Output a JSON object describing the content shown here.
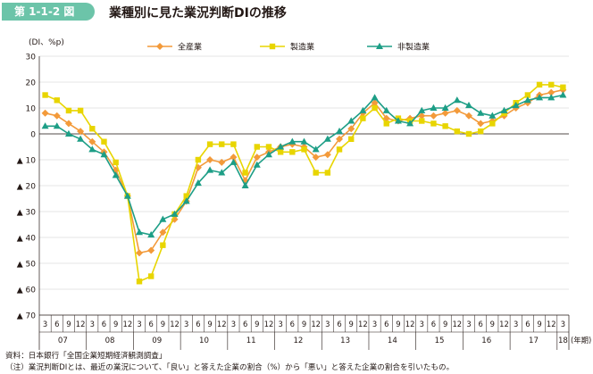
{
  "figure": {
    "tag": "第 1-1-2 図",
    "title": "業種別に見た業況判断DIの推移"
  },
  "chart_data": {
    "type": "line",
    "ylabel": "(DI、%p)",
    "ylim": [
      -70,
      30
    ],
    "grid": true,
    "legend_position": "top",
    "yticks": [
      {
        "value": 30,
        "label": "30"
      },
      {
        "value": 20,
        "label": "20"
      },
      {
        "value": 10,
        "label": "10"
      },
      {
        "value": 0,
        "label": "0"
      },
      {
        "value": -10,
        "label": "▲ 10"
      },
      {
        "value": -20,
        "label": "▲ 20"
      },
      {
        "value": -30,
        "label": "▲ 30"
      },
      {
        "value": -40,
        "label": "▲ 40"
      },
      {
        "value": -50,
        "label": "▲ 50"
      },
      {
        "value": -60,
        "label": "▲ 60"
      },
      {
        "value": -70,
        "label": "▲ 70"
      }
    ],
    "month_labels": [
      "3",
      "6",
      "9",
      "12",
      "3",
      "6",
      "9",
      "12",
      "3",
      "6",
      "9",
      "12",
      "3",
      "6",
      "9",
      "12",
      "3",
      "6",
      "9",
      "12",
      "3",
      "6",
      "9",
      "12",
      "3",
      "6",
      "9",
      "12",
      "3",
      "6",
      "9",
      "12",
      "3",
      "6",
      "9",
      "12",
      "3",
      "6",
      "9",
      "12",
      "3",
      "6",
      "9",
      "12",
      "3"
    ],
    "year_labels": [
      "07",
      "08",
      "09",
      "10",
      "11",
      "12",
      "13",
      "14",
      "15",
      "16",
      "17",
      "18"
    ],
    "year_suffix": "(年期)",
    "series": [
      {
        "name": "全産業",
        "color": "#f39a3a",
        "marker": "diamond",
        "values": [
          8,
          7,
          4,
          1,
          -3,
          -7,
          -14,
          -24,
          -46,
          -45,
          -38,
          -33,
          -26,
          -13,
          -10,
          -11,
          -9,
          -18,
          -9,
          -7,
          -5,
          -4,
          -5,
          -9,
          -8,
          -2,
          2,
          8,
          12,
          6,
          5,
          6,
          7,
          7,
          8,
          9,
          7,
          4,
          5,
          7,
          10,
          12,
          15,
          16,
          17
        ]
      },
      {
        "name": "製造業",
        "color": "#e8d500",
        "marker": "square",
        "values": [
          15,
          13,
          9,
          9,
          2,
          -3,
          -11,
          -24,
          -57,
          -55,
          -43,
          -31,
          -24,
          -10,
          -4,
          -4,
          -4,
          -15,
          -5,
          -5,
          -7,
          -7,
          -6,
          -15,
          -15,
          -6,
          -2,
          6,
          10,
          4,
          6,
          5,
          5,
          4,
          3,
          1,
          0,
          1,
          4,
          8,
          12,
          15,
          19,
          19,
          18
        ]
      },
      {
        "name": "非製造業",
        "color": "#1d9e86",
        "marker": "triangle",
        "values": [
          3,
          3,
          0,
          -2,
          -6,
          -8,
          -16,
          -24,
          -38,
          -39,
          -33,
          -31,
          -26,
          -19,
          -14,
          -15,
          -11,
          -20,
          -12,
          -8,
          -5,
          -3,
          -3,
          -6,
          -2,
          1,
          5,
          9,
          14,
          9,
          5,
          4,
          9,
          10,
          10,
          13,
          11,
          8,
          7,
          9,
          11,
          13,
          14,
          14,
          15
        ]
      }
    ]
  },
  "notes": {
    "source": "資料：日本銀行「全国企業短期経済観測調査」",
    "note": "（注）業況判断DIとは、最近の業況について、「良い」と答えた企業の割合（%）から「悪い」と答えた企業の割合を引いたもの。"
  }
}
